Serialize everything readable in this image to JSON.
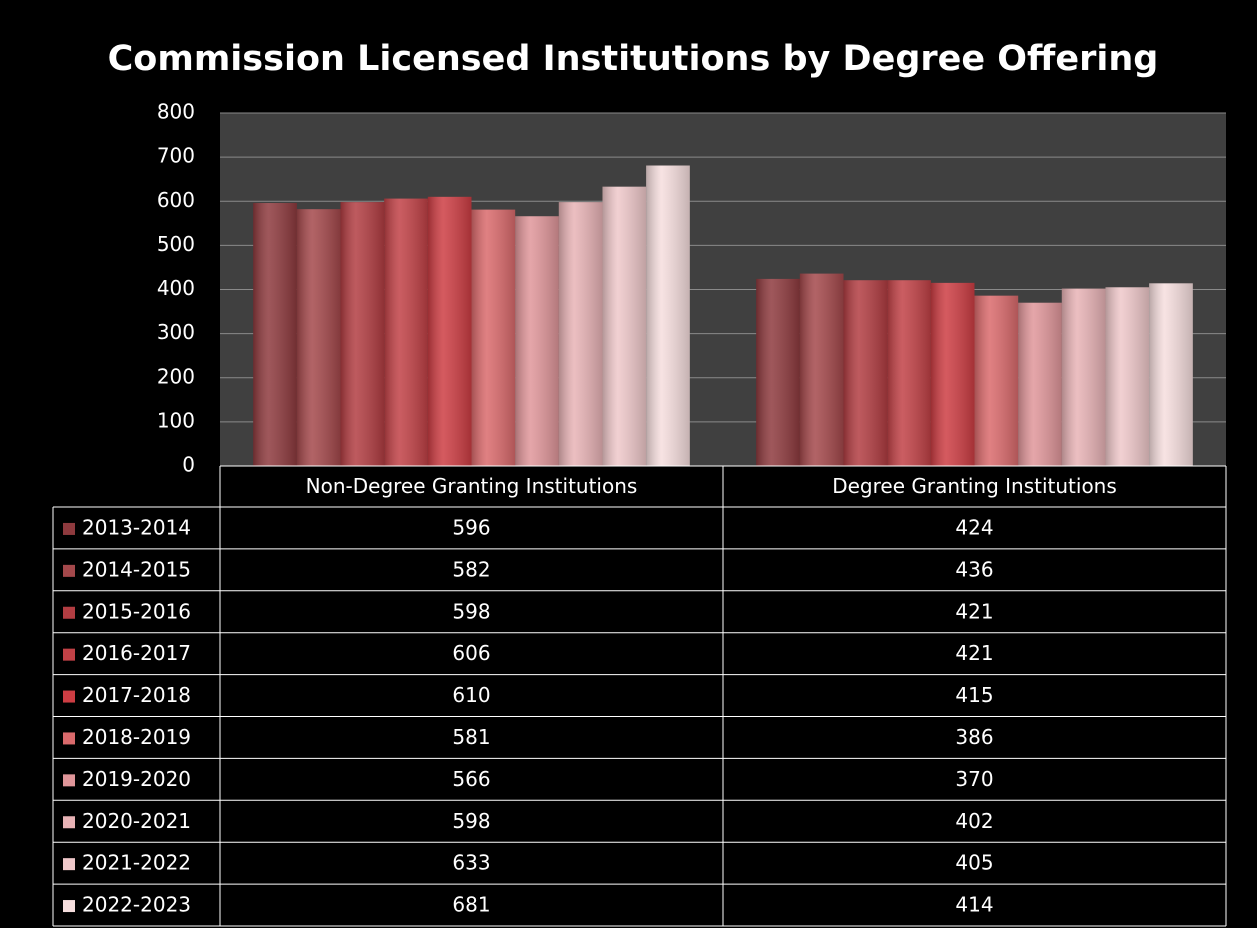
{
  "chart_data": {
    "type": "bar",
    "title": "Commission Licensed Institutions by Degree Offering",
    "categories": [
      "Non-Degree Granting Institutions",
      "Degree Granting Institutions"
    ],
    "series": [
      {
        "name": "2013-2014",
        "color": "#8e3a3e",
        "values": [
          596,
          424
        ]
      },
      {
        "name": "2014-2015",
        "color": "#a4484b",
        "values": [
          582,
          436
        ]
      },
      {
        "name": "2015-2016",
        "color": "#b23d42",
        "values": [
          598,
          421
        ]
      },
      {
        "name": "2016-2017",
        "color": "#c14146",
        "values": [
          606,
          421
        ]
      },
      {
        "name": "2017-2018",
        "color": "#cd3d43",
        "values": [
          610,
          415
        ]
      },
      {
        "name": "2018-2019",
        "color": "#da6a6c",
        "values": [
          581,
          386
        ]
      },
      {
        "name": "2019-2020",
        "color": "#e0969a",
        "values": [
          566,
          370
        ]
      },
      {
        "name": "2020-2021",
        "color": "#e8b3b6",
        "values": [
          598,
          402
        ]
      },
      {
        "name": "2021-2022",
        "color": "#efc8ca",
        "values": [
          633,
          405
        ]
      },
      {
        "name": "2022-2023",
        "color": "#f6dede",
        "values": [
          681,
          414
        ]
      }
    ],
    "ylim": [
      0,
      800
    ],
    "yticks": [
      0,
      100,
      200,
      300,
      400,
      500,
      600,
      700,
      800
    ],
    "grid": true,
    "data_table": true
  }
}
